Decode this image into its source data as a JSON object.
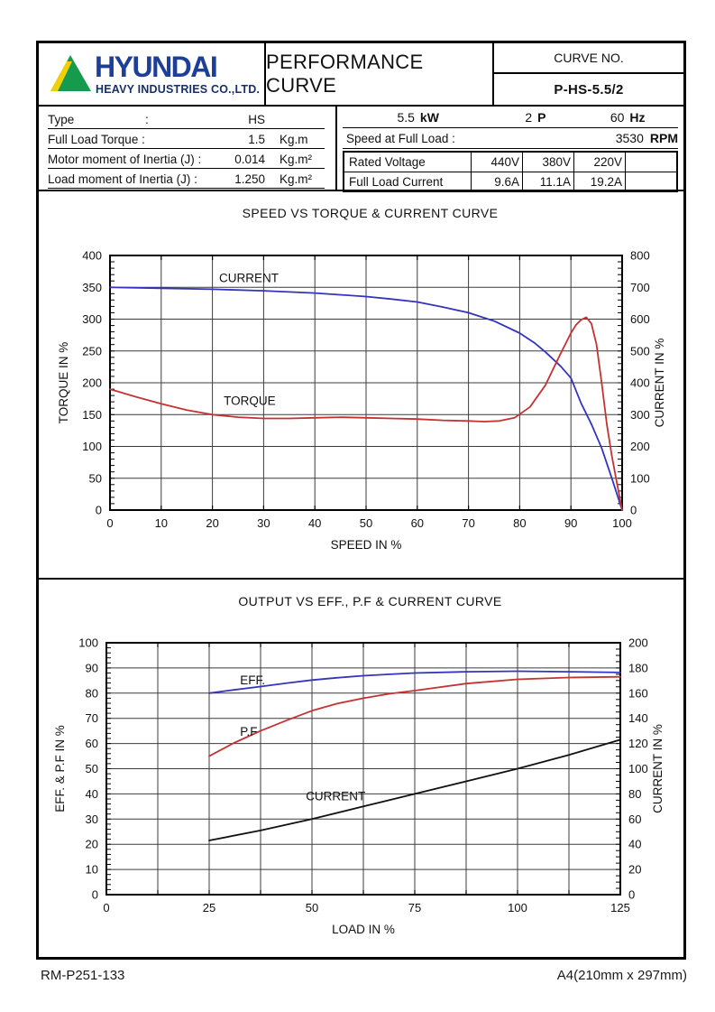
{
  "header": {
    "logo": {
      "brand": "HYUNDAI",
      "sub": "HEAVY INDUSTRIES CO.,LTD.",
      "brand_color": "#1d3f97",
      "sub_color": "#17306b",
      "triangle_green": "#169a4e",
      "triangle_yellow": "#f2cf00"
    },
    "title": "PERFORMANCE CURVE",
    "curve_no_label": "CURVE NO.",
    "curve_no_value": "P-HS-5.5/2"
  },
  "specs_left": {
    "rows": [
      {
        "label": "Type",
        "colon": ":",
        "value": "HS",
        "unit": ""
      },
      {
        "label": "Full Load Torque :",
        "colon": "",
        "value": "1.5",
        "unit": "Kg.m"
      },
      {
        "label": "Motor moment of Inertia (J) :",
        "colon": "",
        "value": "0.014",
        "unit": "Kg.m²"
      },
      {
        "label": "Load moment of Inertia (J) :",
        "colon": "",
        "value": "1.250",
        "unit": "Kg.m²"
      }
    ]
  },
  "specs_right": {
    "power": [
      {
        "value": "5.5",
        "unit": "kW"
      },
      {
        "value": "2",
        "unit": "P"
      },
      {
        "value": "60",
        "unit": "Hz"
      }
    ],
    "speed": {
      "label": "Speed at Full Load :",
      "value": "3530",
      "unit": "RPM"
    },
    "voltage_row": {
      "label": "Rated Voltage",
      "values": [
        "440V",
        "380V",
        "220V",
        ""
      ]
    },
    "current_row": {
      "label": "Full Load Current",
      "values": [
        "9.6A",
        "11.1A",
        "19.2A",
        ""
      ]
    }
  },
  "footer": {
    "left": "RM-P251-133",
    "right": "A4(210mm x 297mm)"
  },
  "chart_data": [
    {
      "type": "line",
      "title": "SPEED VS TORQUE & CURRENT CURVE",
      "xlabel": "SPEED IN %",
      "ylabel_left": "TORQUE IN %",
      "ylabel_right": "CURRENT IN %",
      "xlim": [
        0,
        100
      ],
      "ylim_left": [
        0,
        400
      ],
      "ylim_right": [
        0,
        800
      ],
      "x_ticks": [
        0,
        10,
        20,
        30,
        40,
        50,
        60,
        70,
        80,
        90,
        100
      ],
      "x_grid_step": 10,
      "y_ticks_left": [
        0,
        50,
        100,
        150,
        200,
        250,
        300,
        350,
        400
      ],
      "y_ticks_right": [
        0,
        100,
        200,
        300,
        400,
        500,
        600,
        700,
        800
      ],
      "y_minor_left": 10,
      "y_minor_right": 20,
      "grid": true,
      "series": [
        {
          "name": "CURRENT",
          "axis": "right",
          "color": "#3434bf",
          "label_at": {
            "x": 21.3,
            "y": 358
          },
          "x": [
            0,
            10,
            20,
            30,
            40,
            50,
            55,
            60,
            65,
            70,
            75,
            80,
            83,
            85,
            88,
            90,
            92,
            94,
            96,
            98,
            100
          ],
          "y": [
            700,
            697,
            694,
            689,
            682,
            671,
            663,
            654,
            638,
            620,
            594,
            556,
            524,
            497,
            452,
            415,
            335,
            270,
            195,
            100,
            0
          ]
        },
        {
          "name": "TORQUE",
          "axis": "left",
          "color": "#c53232",
          "label_at": {
            "x": 22.2,
            "y": 165
          },
          "x": [
            0,
            5,
            10,
            15,
            20,
            25,
            30,
            35,
            40,
            45,
            50,
            55,
            60,
            65,
            70,
            73,
            76,
            79,
            82,
            85,
            88,
            90,
            91,
            92,
            93,
            94,
            95,
            96,
            97,
            98,
            99,
            100
          ],
          "y": [
            190,
            178,
            167,
            157,
            150,
            146,
            144,
            144,
            145,
            146,
            145,
            144,
            143,
            141,
            140,
            139,
            140,
            145,
            162,
            196,
            246,
            278,
            291,
            299,
            303,
            293,
            260,
            200,
            135,
            85,
            42,
            0
          ]
        }
      ]
    },
    {
      "type": "line",
      "title": "OUTPUT VS EFF., P.F & CURRENT CURVE",
      "xlabel": "LOAD IN %",
      "ylabel_left": "EFF. & P.F IN %",
      "ylabel_right": "CURRENT IN %",
      "xlim": [
        0,
        125
      ],
      "ylim_left": [
        0,
        100
      ],
      "ylim_right": [
        0,
        200
      ],
      "x_ticks": [
        0,
        25,
        50,
        75,
        100,
        125
      ],
      "x_grid_step": 12.5,
      "y_ticks_left": [
        0,
        10,
        20,
        30,
        40,
        50,
        60,
        70,
        80,
        90,
        100
      ],
      "y_ticks_right": [
        0,
        20,
        40,
        60,
        80,
        100,
        120,
        140,
        160,
        180,
        200
      ],
      "y_minor_left": 2,
      "y_minor_right": 5,
      "grid": true,
      "series": [
        {
          "name": "EFF.",
          "axis": "left",
          "color": "#3434bf",
          "label_at": {
            "x": 32.5,
            "y": 83.5
          },
          "x": [
            25,
            31,
            37.5,
            44,
            50,
            56,
            62.5,
            69,
            75,
            87.5,
            100,
            112.5,
            125
          ],
          "y": [
            80,
            81.3,
            82.6,
            84,
            85.2,
            86.1,
            86.9,
            87.5,
            88,
            88.5,
            88.7,
            88.5,
            88.2
          ]
        },
        {
          "name": "P.F",
          "axis": "left",
          "color": "#c53232",
          "label_at": {
            "x": 32.5,
            "y": 63
          },
          "x": [
            25,
            31,
            37.5,
            44,
            50,
            56,
            62.5,
            69,
            75,
            87.5,
            100,
            112.5,
            125
          ],
          "y": [
            55,
            60.2,
            65,
            69.3,
            73,
            75.8,
            78,
            79.8,
            81,
            83.8,
            85.5,
            86.2,
            86.5
          ]
        },
        {
          "name": "CURRENT",
          "axis": "right",
          "color": "#111111",
          "label_at": {
            "x": 48.5,
            "y": 37.5
          },
          "x": [
            25,
            37.5,
            50,
            62.5,
            75,
            87.5,
            100,
            112.5,
            125
          ],
          "y": [
            43,
            51,
            60,
            70,
            80,
            90,
            100,
            111,
            123
          ]
        }
      ]
    }
  ]
}
